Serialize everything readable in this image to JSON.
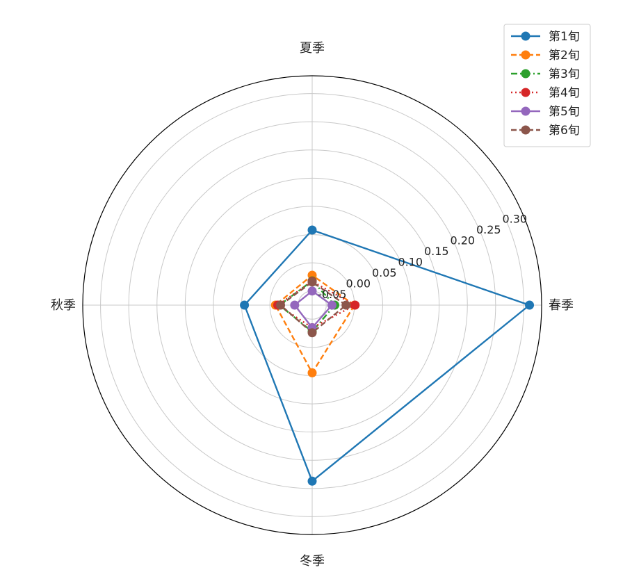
{
  "chart_data": {
    "type": "radar",
    "categories": [
      "春季",
      "夏季",
      "秋季",
      "冬季"
    ],
    "radial_ticks": [
      "-0.05",
      "0.00",
      "0.05",
      "0.10",
      "0.15",
      "0.20",
      "0.25",
      "0.30"
    ],
    "radial_tick_values": [
      -0.05,
      0.0,
      0.05,
      0.1,
      0.15,
      0.2,
      0.25,
      0.3
    ],
    "rlim": [
      -0.075,
      0.3315
    ],
    "grid": true,
    "legend_position": "top-right",
    "series": [
      {
        "name": "第1旬",
        "values": [
          0.31,
          0.058,
          0.045,
          0.237
        ],
        "color": "#1f77b4",
        "dash": "solid"
      },
      {
        "name": "第2旬",
        "values": [
          0.0,
          -0.022,
          -0.01,
          0.045
        ],
        "color": "#ff7f0e",
        "dash": "dashed"
      },
      {
        "name": "第3旬",
        "values": [
          -0.035,
          -0.032,
          -0.017,
          -0.028
        ],
        "color": "#2ca02c",
        "dash": "dashdot"
      },
      {
        "name": "第4旬",
        "values": [
          0.001,
          -0.033,
          -0.014,
          -0.035
        ],
        "color": "#d62728",
        "dash": "dotted"
      },
      {
        "name": "第5旬",
        "values": [
          -0.04,
          -0.05,
          -0.044,
          -0.035
        ],
        "color": "#9467bd",
        "dash": "solid"
      },
      {
        "name": "第6旬",
        "values": [
          -0.015,
          -0.034,
          -0.019,
          -0.026
        ],
        "color": "#8c564b",
        "dash": "dashed"
      }
    ]
  }
}
